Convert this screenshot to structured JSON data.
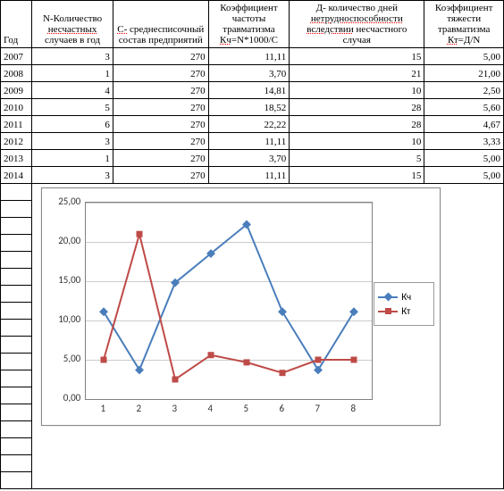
{
  "columns": [
    {
      "key": "year",
      "label": "Год",
      "align": "l"
    },
    {
      "key": "n",
      "label": "N-Количество <u>несчастных</u> случаев в год",
      "align": "c"
    },
    {
      "key": "c",
      "label": "<u>С-</u> среднесписочный состав предприятий",
      "align": "c"
    },
    {
      "key": "kch",
      "label": "Коэффициент частоты травматизма <u>Кч</u>=N*1000/C",
      "align": "c"
    },
    {
      "key": "d",
      "label": "Д- количество дней <u>нетрудноспособности</u> <u>вследствии</u> несчастного случая",
      "align": "c"
    },
    {
      "key": "kt",
      "label": "Коэффициент тяжести травматизма <u>Кт</u>=Д/N",
      "align": "c"
    }
  ],
  "rows": [
    {
      "year": "2007",
      "n": "3",
      "c": "270",
      "kch": "11,11",
      "d": "15",
      "kt": "5,00"
    },
    {
      "year": "2008",
      "n": "1",
      "c": "270",
      "kch": "3,70",
      "d": "21",
      "kt": "21,00"
    },
    {
      "year": "2009",
      "n": "4",
      "c": "270",
      "kch": "14,81",
      "d": "10",
      "kt": "2,50"
    },
    {
      "year": "2010",
      "n": "5",
      "c": "270",
      "kch": "18,52",
      "d": "28",
      "kt": "5,60"
    },
    {
      "year": "2011",
      "n": "6",
      "c": "270",
      "kch": "22,22",
      "d": "28",
      "kt": "4,67"
    },
    {
      "year": "2012",
      "n": "3",
      "c": "270",
      "kch": "11,11",
      "d": "10",
      "kt": "3,33"
    },
    {
      "year": "2013",
      "n": "1",
      "c": "270",
      "kch": "3,70",
      "d": "5",
      "kt": "5,00"
    },
    {
      "year": "2014",
      "n": "3",
      "c": "270",
      "kch": "11,11",
      "d": "15",
      "kt": "5,00"
    }
  ],
  "empty_rows_before_chart": 0,
  "chart": {
    "type": "line",
    "series": [
      {
        "name": "Кч",
        "color": "#4a7ebb",
        "marker": "diamond",
        "values": [
          11.11,
          3.7,
          14.81,
          18.52,
          22.22,
          11.11,
          3.7,
          11.11
        ]
      },
      {
        "name": "Кт",
        "color": "#be4b48",
        "marker": "square",
        "values": [
          5.0,
          21.0,
          2.5,
          5.6,
          4.67,
          3.33,
          5.0,
          5.0
        ]
      }
    ],
    "x_categories": [
      1,
      2,
      3,
      4,
      5,
      6,
      7,
      8
    ],
    "ylim": [
      0,
      25
    ],
    "ytick_step": 5,
    "y_labels": [
      "0,00",
      "5,00",
      "10,00",
      "15,00",
      "20,00",
      "25,00"
    ],
    "plot_border_color": "#808080",
    "grid_color": "#cccccc",
    "background_color": "#ffffff",
    "line_width": 2,
    "marker_size": 7,
    "font_family": "Calibri",
    "font_size": 11
  },
  "colors": {
    "blue": "#4a7ebb",
    "red": "#be4b48"
  }
}
